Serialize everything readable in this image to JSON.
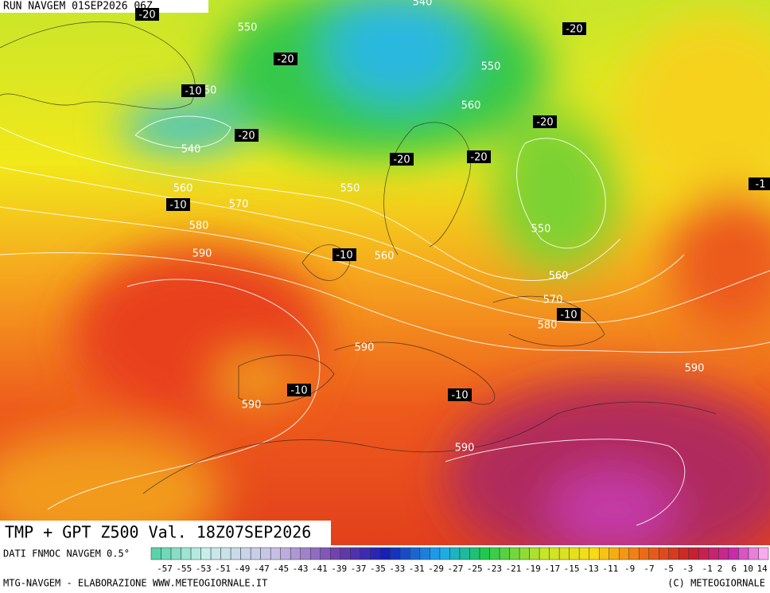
{
  "header": {
    "run": "RUN NAVGEM 01SEP2026 06Z"
  },
  "caption": "TMP + GPT Z500 Val. 18Z07SEP2026",
  "height_labels": [
    "550",
    "540",
    "550",
    "540",
    "550",
    "560",
    "550",
    "560",
    "570",
    "580",
    "590",
    "560",
    "550",
    "560",
    "570",
    "580",
    "590",
    "590",
    "590",
    "590"
  ],
  "temperature_labels": [
    "-20",
    "-20",
    "-20",
    "-20",
    "-20",
    "-20",
    "-20",
    "-10",
    "-10",
    "-10",
    "-10",
    "-10",
    "-10",
    "-1"
  ],
  "legend": {
    "source": "DATI FNMOC NAVGEM 0.5°",
    "labels": [
      -57,
      -55,
      -53,
      -51,
      -49,
      -47,
      -45,
      -43,
      -41,
      -39,
      -37,
      -35,
      -33,
      -31,
      -29,
      -27,
      -25,
      -23,
      -21,
      -19,
      -17,
      -15,
      -13,
      -11,
      -9,
      -7,
      -5,
      -3,
      -1,
      2,
      6,
      10,
      14
    ]
  },
  "footer": {
    "left": "MTG-NAVGEM - ELABORAZIONE WWW.METEOGIORNALE.IT",
    "right": "(C) METEOGIORNALE"
  }
}
